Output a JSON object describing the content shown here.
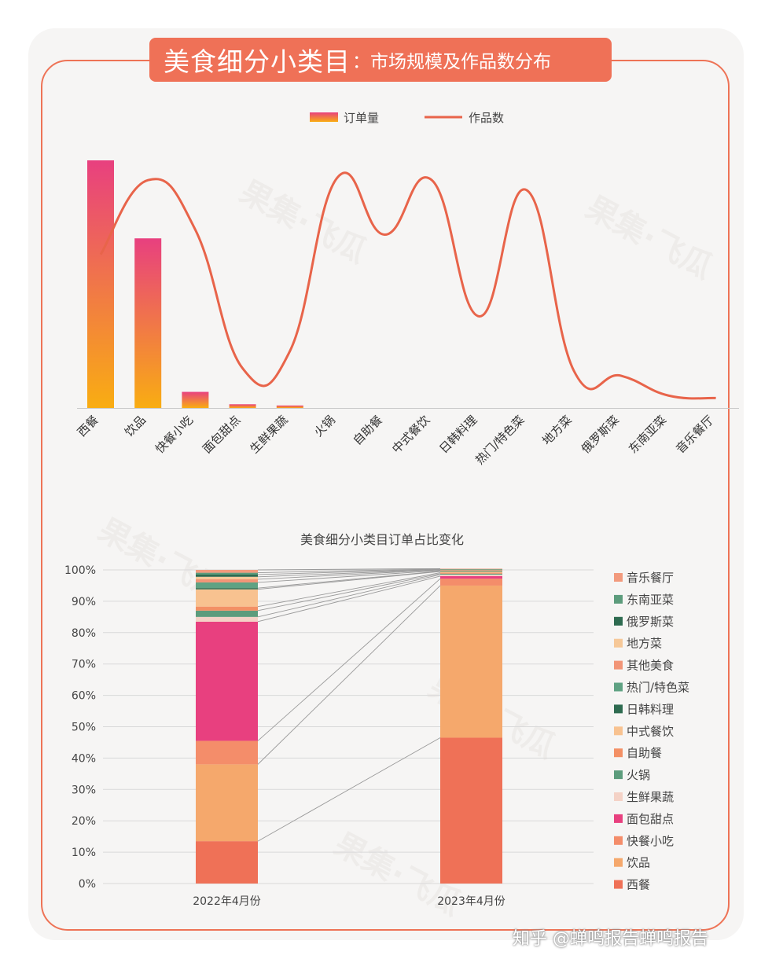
{
  "banner": {
    "title": "美食细分小类目",
    "subtitle": "：市场规模及作品数分布"
  },
  "watermark": "果集·飞瓜",
  "footer": "知乎 @蝉鸣报告蝉鸣报告",
  "colors": {
    "accent": "#ef7157",
    "bar_top": "#e8407f",
    "bar_bottom": "#f9ad12",
    "line": "#e8644a"
  },
  "chart_data": [
    {
      "type": "bar",
      "legend": [
        "订单量",
        "作品数"
      ],
      "categories": [
        "西餐",
        "饮品",
        "快餐小吃",
        "面包甜点",
        "生鲜果蔬",
        "火锅",
        "自助餐",
        "中式餐饮",
        "日韩料理",
        "热门/特色菜",
        "地方菜",
        "俄罗斯菜",
        "东南亚菜",
        "音乐餐厅"
      ],
      "series": [
        {
          "name": "订单量",
          "type": "bar",
          "values": [
            100,
            68.5,
            6.5,
            1.5,
            1,
            0,
            0,
            0,
            0,
            0,
            0,
            0,
            0,
            0
          ]
        },
        {
          "name": "作品数",
          "type": "line",
          "values": [
            62,
            92,
            72,
            16,
            23,
            93,
            70,
            92,
            37,
            88,
            15,
            13,
            5,
            4
          ]
        }
      ],
      "ylim": [
        0,
        100
      ],
      "grid": false,
      "legend_position": "top-center"
    },
    {
      "type": "bar",
      "stacked": true,
      "title": "美食细分小类目订单占比变化",
      "categories": [
        "2022年4月份",
        "2023年4月份"
      ],
      "yticks": [
        "0%",
        "10%",
        "20%",
        "30%",
        "40%",
        "50%",
        "60%",
        "70%",
        "80%",
        "90%",
        "100%"
      ],
      "ylim": [
        0,
        100
      ],
      "legend_position": "right",
      "series": [
        {
          "name": "西餐",
          "color": "#ef7157",
          "values": [
            13.5,
            46.5
          ]
        },
        {
          "name": "饮品",
          "color": "#f5a86c",
          "values": [
            24.5,
            48.5
          ]
        },
        {
          "name": "快餐小吃",
          "color": "#f48d6a",
          "values": [
            7.5,
            2.2
          ]
        },
        {
          "name": "面包甜点",
          "color": "#e8407f",
          "values": [
            38,
            0.8
          ]
        },
        {
          "name": "生鲜果蔬",
          "color": "#f4d2c6",
          "values": [
            1.5,
            0.5
          ]
        },
        {
          "name": "火锅",
          "color": "#5c9c7c",
          "values": [
            2.0,
            0.3
          ]
        },
        {
          "name": "自助餐",
          "color": "#f39065",
          "values": [
            1.3,
            0.3
          ]
        },
        {
          "name": "中式餐饮",
          "color": "#f8c290",
          "values": [
            5.5,
            0.4
          ]
        },
        {
          "name": "日韩料理",
          "color": "#2e6b50",
          "values": [
            0.4,
            0.1
          ]
        },
        {
          "name": "热门/特色菜",
          "color": "#5fa283",
          "values": [
            1.8,
            0.2
          ]
        },
        {
          "name": "其他美食",
          "color": "#f29577",
          "values": [
            1.0,
            0.2
          ]
        },
        {
          "name": "地方菜",
          "color": "#f6c898",
          "values": [
            0.8,
            0.1
          ]
        },
        {
          "name": "俄罗斯菜",
          "color": "#2e6b50",
          "values": [
            0.7,
            0.1
          ]
        },
        {
          "name": "东南亚菜",
          "color": "#5c9c7c",
          "values": [
            0.6,
            0.1
          ]
        },
        {
          "name": "音乐餐厅",
          "color": "#f29a7d",
          "values": [
            0.9,
            0.1
          ]
        }
      ]
    }
  ]
}
